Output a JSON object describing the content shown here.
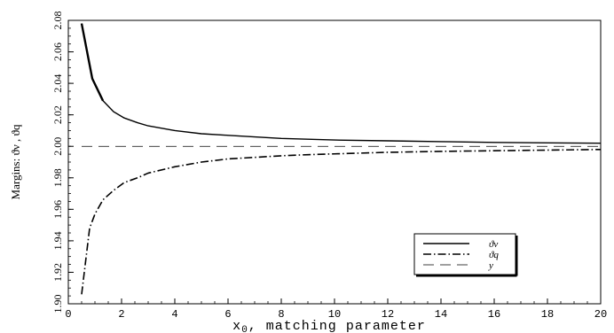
{
  "chart_data": {
    "type": "line",
    "title": "",
    "xlabel_main": "x",
    "xlabel_sub": "0",
    "xlabel_rest": ", matching parameter",
    "ylabel": "Margins: ϑ^ν , ϑ^q",
    "xlim": [
      0,
      20
    ],
    "ylim": [
      1.9,
      2.08
    ],
    "xticks": [
      0,
      2,
      4,
      6,
      8,
      10,
      12,
      14,
      16,
      18,
      20
    ],
    "yticks": [
      1.9,
      1.92,
      1.94,
      1.96,
      1.98,
      2.0,
      2.02,
      2.04,
      2.06,
      2.08
    ],
    "ytick_labels": [
      "1.90",
      "1.92",
      "1.94",
      "1.96",
      "1.98",
      "2.00",
      "2.02",
      "2.04",
      "2.06",
      "2.08"
    ],
    "xtick_labels": [
      "0",
      "2",
      "4",
      "6",
      "8",
      "10",
      "12",
      "14",
      "16",
      "18",
      "20"
    ],
    "grid": false,
    "legend_position": "bottom-right",
    "series": [
      {
        "name": "ϑν",
        "style": "solid",
        "x": [
          0.5,
          0.9,
          1.3,
          1.7,
          2.1,
          2.6,
          3,
          4,
          5,
          6,
          7,
          8,
          9,
          10,
          12,
          14,
          16,
          18,
          20
        ],
        "y": [
          2.078,
          2.043,
          2.029,
          2.022,
          2.018,
          2.015,
          2.013,
          2.01,
          2.008,
          2.007,
          2.006,
          2.005,
          2.0045,
          2.004,
          2.0035,
          2.003,
          2.0025,
          2.0022,
          2.002
        ]
      },
      {
        "name": "ϑq",
        "style": "dashdot",
        "x": [
          0.5,
          0.6,
          0.8,
          1.0,
          1.3,
          1.7,
          2.1,
          2.6,
          3,
          4,
          5,
          6,
          7,
          8,
          9,
          10,
          12,
          14,
          16,
          18,
          20
        ],
        "y": [
          1.906,
          1.92,
          1.948,
          1.957,
          1.966,
          1.972,
          1.977,
          1.98,
          1.983,
          1.987,
          1.99,
          1.992,
          1.993,
          1.994,
          1.9947,
          1.9952,
          1.9962,
          1.9968,
          1.9972,
          1.9976,
          1.998
        ]
      },
      {
        "name": "y",
        "style": "dashed",
        "x": [
          0.5,
          20
        ],
        "y": [
          2.0,
          2.0
        ]
      }
    ]
  }
}
